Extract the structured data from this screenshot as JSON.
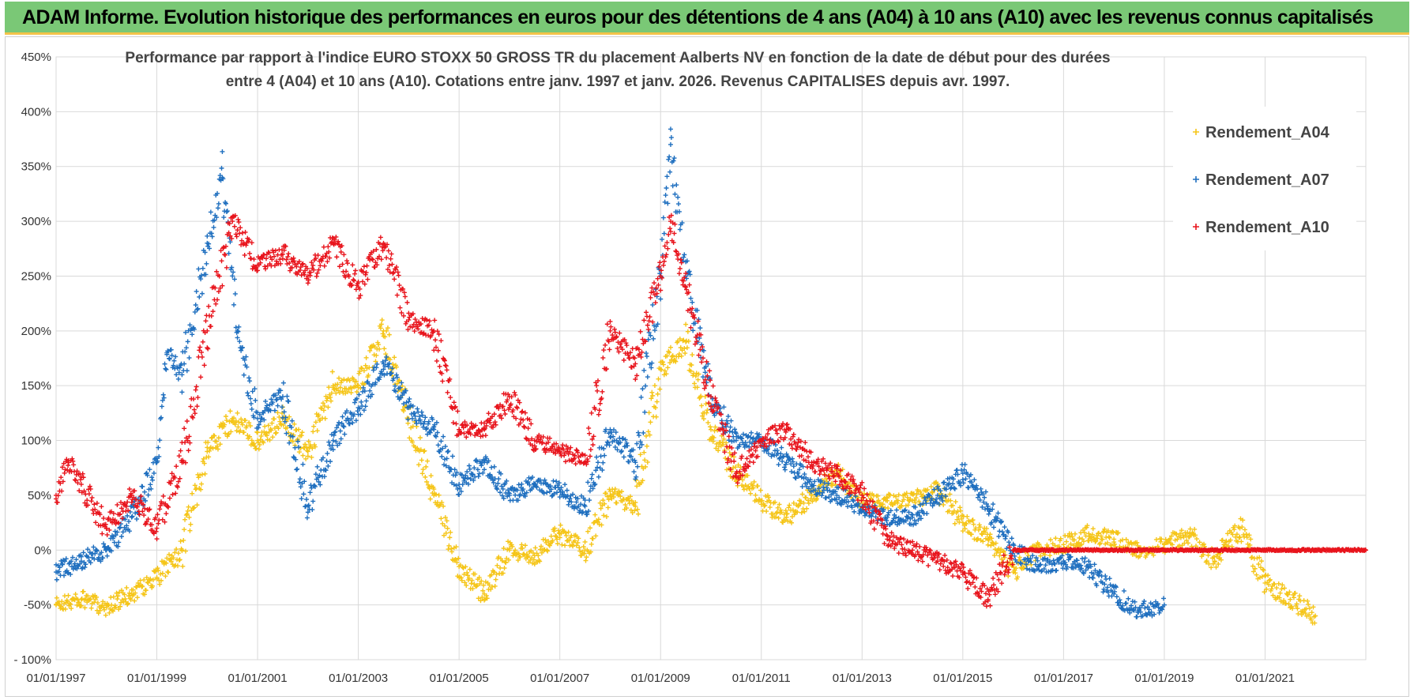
{
  "banner": {
    "title": "ADAM Informe. Evolution historique des performances en euros pour des détentions de 4 ans (A04) à 10 ans (A10) avec les revenus connus capitalisés",
    "color": "#7ac876",
    "border_color": "#f3c34a"
  },
  "chart_data": {
    "type": "scatter",
    "title_lines": [
      "Performance par rapport à l'indice EURO STOXX 50 GROSS TR  du placement Aalberts NV en fonction de la date de début pour des durées",
      "entre 4 (A04) et 10 ans (A10).  Cotations entre janv. 1997 et janv. 2026. Revenus CAPITALISES depuis avr. 1997."
    ],
    "xlabel": "",
    "ylabel": "",
    "x_range": [
      1997.0,
      2023.0
    ],
    "ylim": [
      -100,
      450
    ],
    "y_ticks": [
      -100,
      -50,
      0,
      50,
      100,
      150,
      200,
      250,
      300,
      350,
      400,
      450
    ],
    "y_tick_labels": [
      "- 100%",
      "-50%",
      "0%",
      "50%",
      "100%",
      "150%",
      "200%",
      "250%",
      "300%",
      "350%",
      "400%",
      "450%"
    ],
    "x_ticks": [
      1997,
      1999,
      2001,
      2003,
      2005,
      2007,
      2009,
      2011,
      2013,
      2015,
      2017,
      2019,
      2021
    ],
    "x_tick_labels": [
      "01/01/1997",
      "01/01/1999",
      "01/01/2001",
      "01/01/2003",
      "01/01/2005",
      "01/01/2007",
      "01/01/2009",
      "01/01/2011",
      "01/01/2013",
      "01/01/2015",
      "01/01/2017",
      "01/01/2019",
      "01/01/2021"
    ],
    "grid": true,
    "legend_position": "top-right",
    "series": [
      {
        "name": "Rendement_A04",
        "color": "#f5c518",
        "x": [
          1997.0,
          1997.5,
          1998.0,
          1998.5,
          1999.0,
          1999.5,
          2000.0,
          2000.5,
          2001.0,
          2001.5,
          2002.0,
          2002.5,
          2003.0,
          2003.5,
          2004.0,
          2004.5,
          2005.0,
          2005.5,
          2006.0,
          2006.5,
          2007.0,
          2007.5,
          2008.0,
          2008.5,
          2009.0,
          2009.5,
          2010.0,
          2010.5,
          2011.0,
          2011.5,
          2012.0,
          2012.5,
          2013.0,
          2013.5,
          2014.0,
          2014.5,
          2015.0,
          2015.5,
          2016.0,
          2016.5,
          2017.0,
          2017.5,
          2018.0,
          2018.5,
          2019.0,
          2019.5,
          2020.0,
          2020.5,
          2021.0,
          2021.5,
          2022.0
        ],
        "y": [
          -50,
          -45,
          -52,
          -40,
          -25,
          0,
          90,
          120,
          100,
          120,
          90,
          150,
          150,
          200,
          120,
          50,
          -15,
          -40,
          0,
          -5,
          15,
          0,
          50,
          40,
          165,
          190,
          110,
          70,
          45,
          30,
          50,
          70,
          45,
          45,
          45,
          55,
          25,
          10,
          -20,
          0,
          5,
          15,
          10,
          0,
          5,
          15,
          -10,
          20,
          -30,
          -45,
          -60
        ]
      },
      {
        "name": "Rendement_A07",
        "color": "#1f6fbf",
        "x": [
          1997.0,
          1997.5,
          1998.0,
          1998.5,
          1999.0,
          1999.2,
          1999.5,
          2000.0,
          2000.3,
          2000.6,
          2001.0,
          2001.5,
          2002.0,
          2002.5,
          2003.0,
          2003.5,
          2004.0,
          2004.5,
          2005.0,
          2005.5,
          2006.0,
          2006.5,
          2007.0,
          2007.5,
          2008.0,
          2008.5,
          2009.0,
          2009.2,
          2009.5,
          2010.0,
          2010.5,
          2011.0,
          2011.5,
          2012.0,
          2012.5,
          2013.0,
          2013.5,
          2014.0,
          2014.5,
          2015.0,
          2015.5,
          2016.0,
          2016.5,
          2017.0,
          2017.5,
          2018.0,
          2018.5,
          2019.0
        ],
        "y": [
          -20,
          -10,
          0,
          30,
          80,
          180,
          160,
          280,
          340,
          200,
          120,
          140,
          40,
          100,
          130,
          170,
          130,
          110,
          60,
          80,
          50,
          60,
          55,
          40,
          110,
          80,
          250,
          370,
          250,
          140,
          100,
          100,
          80,
          60,
          50,
          40,
          30,
          30,
          50,
          70,
          40,
          0,
          -15,
          -10,
          -15,
          -40,
          -55,
          -50
        ]
      },
      {
        "name": "Rendement_A10",
        "color": "#e8141c",
        "x": [
          1997.0,
          1997.25,
          1997.5,
          1998.0,
          1998.5,
          1999.0,
          1999.5,
          2000.0,
          2000.5,
          2001.0,
          2001.5,
          2002.0,
          2002.5,
          2003.0,
          2003.5,
          2004.0,
          2004.5,
          2005.0,
          2005.5,
          2006.0,
          2006.5,
          2007.0,
          2007.5,
          2008.0,
          2008.5,
          2009.0,
          2009.2,
          2009.5,
          2010.0,
          2010.5,
          2011.0,
          2011.5,
          2012.0,
          2012.5,
          2013.0,
          2013.5,
          2014.0,
          2014.5,
          2015.0,
          2015.5,
          2016.0,
          2017.0,
          2018.0,
          2019.0,
          2020.0,
          2021.0,
          2022.0,
          2023.0
        ],
        "y": [
          50,
          80,
          60,
          20,
          50,
          20,
          80,
          200,
          300,
          260,
          270,
          250,
          280,
          240,
          280,
          210,
          200,
          110,
          110,
          140,
          100,
          90,
          80,
          200,
          170,
          250,
          300,
          240,
          140,
          70,
          100,
          110,
          80,
          70,
          50,
          10,
          0,
          -10,
          -20,
          -45,
          0,
          0,
          0,
          0,
          0,
          0,
          0,
          0
        ]
      }
    ]
  }
}
